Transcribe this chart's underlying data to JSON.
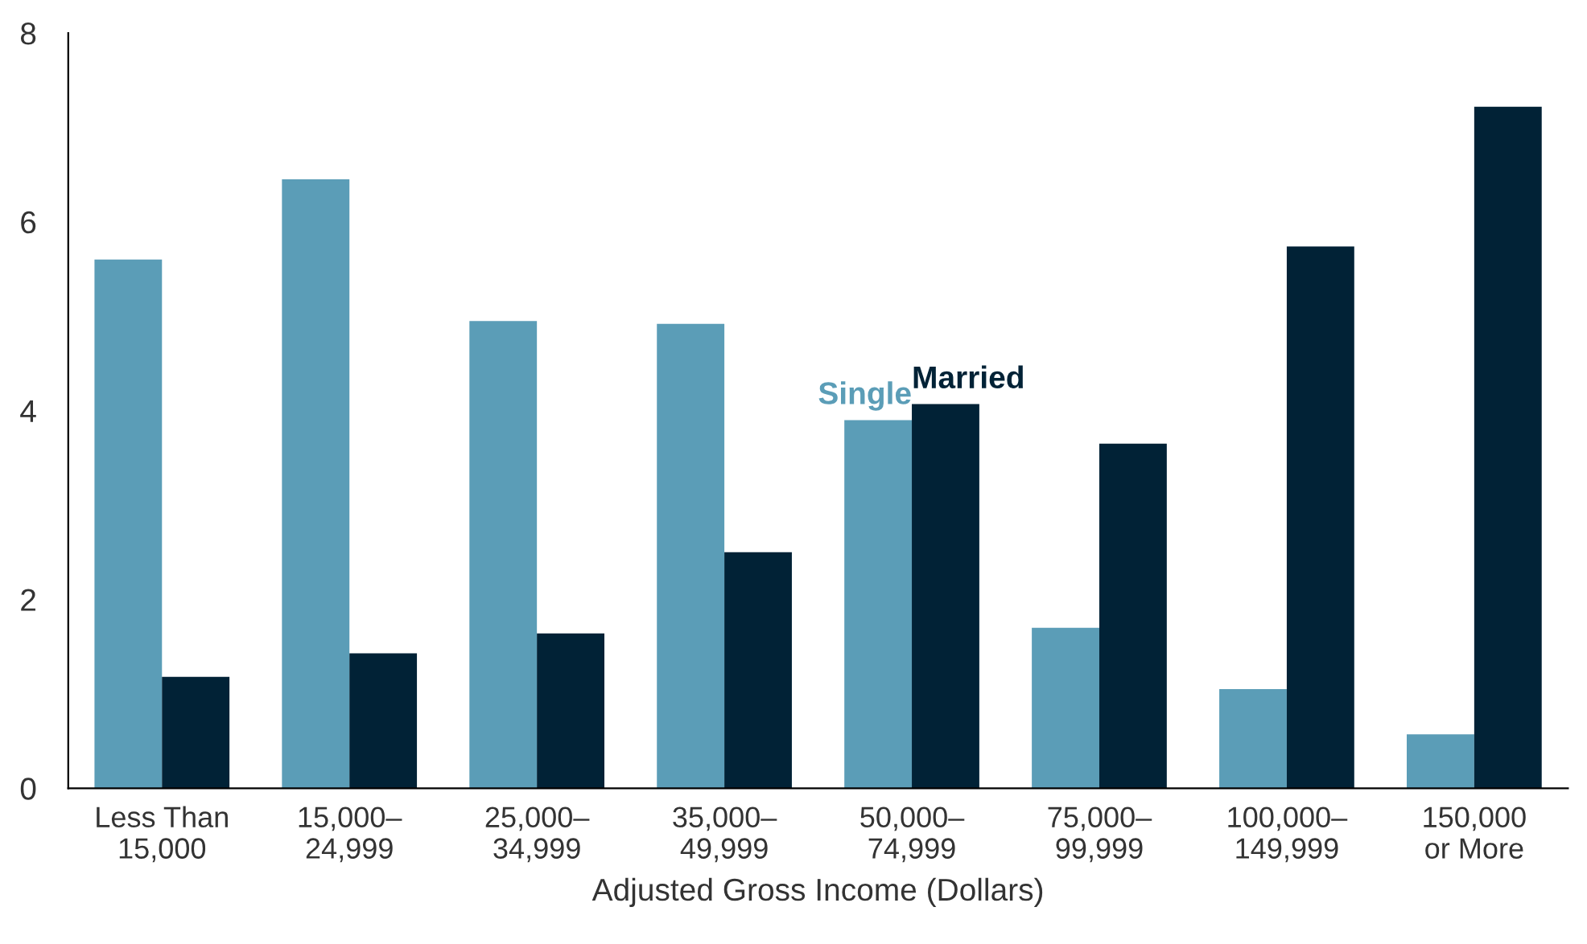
{
  "chart_data": {
    "type": "bar",
    "xlabel": "Adjusted Gross Income (Dollars)",
    "categories": [
      "Less Than\n15,000",
      "15,000–\n24,999",
      "25,000–\n34,999",
      "35,000–\n49,999",
      "50,000–\n74,999",
      "75,000–\n99,999",
      "100,000–\n149,999",
      "150,000\nor More"
    ],
    "series": [
      {
        "name": "Single",
        "color": "#5b9db7",
        "values": [
          5.6,
          6.45,
          4.95,
          4.92,
          3.9,
          1.7,
          1.05,
          0.57
        ]
      },
      {
        "name": "Married",
        "color": "#012236",
        "values": [
          1.18,
          1.43,
          1.64,
          2.5,
          4.07,
          3.65,
          5.74,
          7.22
        ]
      }
    ],
    "ylim": [
      0,
      8
    ],
    "yticks": [
      0,
      2,
      4,
      6,
      8
    ],
    "grid": false,
    "legend": false
  }
}
